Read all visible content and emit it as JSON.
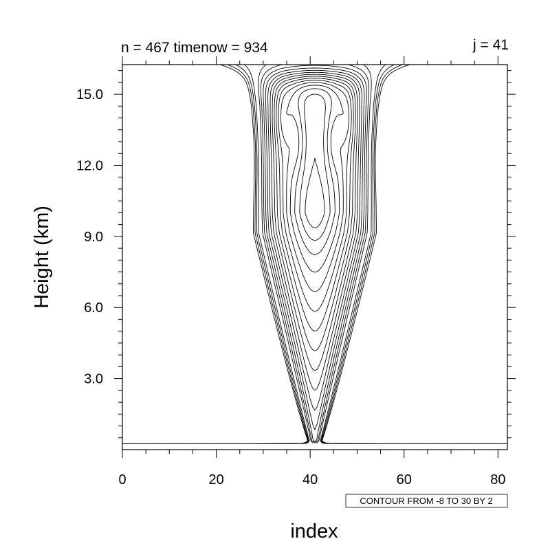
{
  "chart_data": {
    "type": "contour",
    "title_left": "n = 467 timenow = 934",
    "title_right": "j = 41",
    "xlabel": "index",
    "ylabel": "Height (km)",
    "xlim": [
      0,
      82
    ],
    "ylim": [
      0,
      16.25
    ],
    "xticks": [
      0,
      20,
      40,
      60,
      80
    ],
    "xtick_labels": [
      "0",
      "20",
      "40",
      "60",
      "80"
    ],
    "yticks": [
      3.0,
      6.0,
      9.0,
      12.0,
      15.0
    ],
    "ytick_labels": [
      "3.0",
      "6.0",
      "9.0",
      "12.0",
      "15.0"
    ],
    "contour_info": "CONTOUR FROM -8 TO 30 BY 2",
    "levels": {
      "min": -8,
      "max": 30,
      "step": 2
    },
    "negative_line_style": "dashed",
    "positive_line_style": "solid",
    "grid": false,
    "line_color": "#000000",
    "plume_center_index": 41
  }
}
